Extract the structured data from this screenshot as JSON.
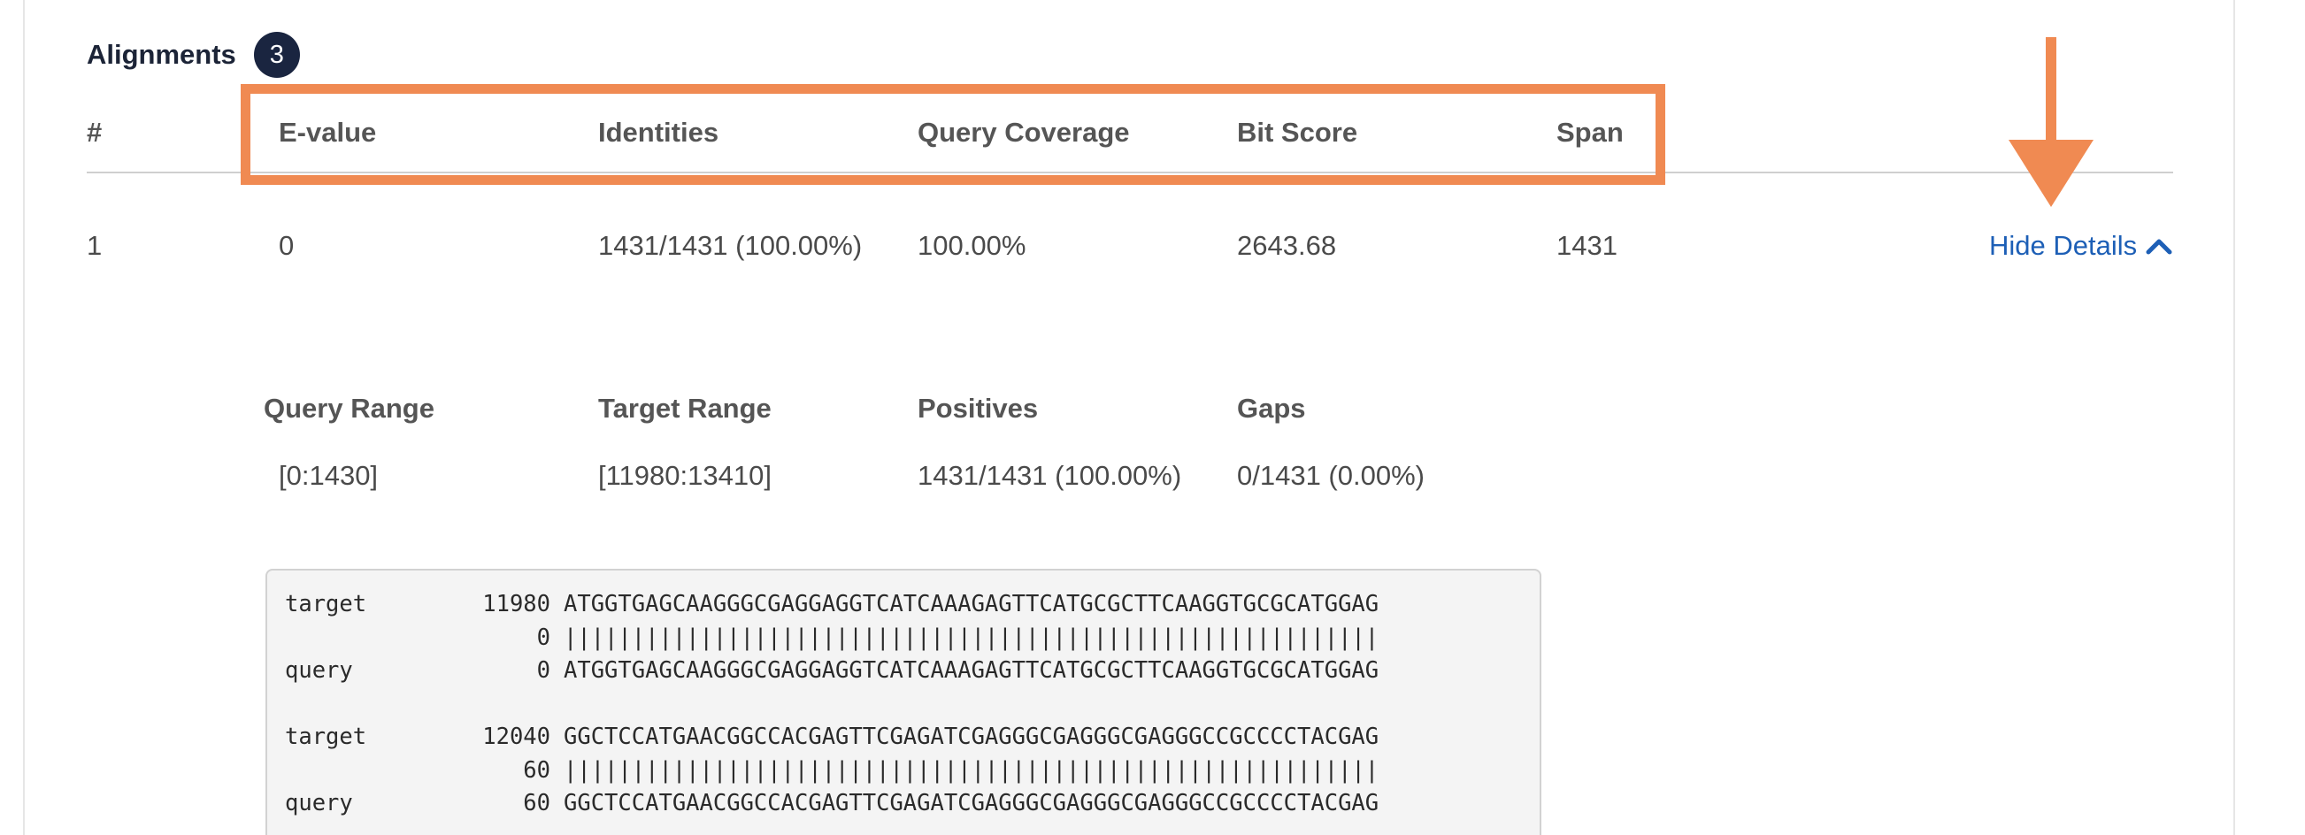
{
  "heading": {
    "title": "Alignments",
    "count": "3"
  },
  "table": {
    "columns": [
      "#",
      "E-value",
      "Identities",
      "Query Coverage",
      "Bit Score",
      "Span"
    ],
    "rows": [
      {
        "index": "1",
        "evalue": "0",
        "identities": "1431/1431 (100.00%)",
        "query_coverage": "100.00%",
        "bit_score": "2643.68",
        "span": "1431",
        "toggle_label": "Hide Details"
      }
    ]
  },
  "details": {
    "headers": [
      "Query Range",
      "Target Range",
      "Positives",
      "Gaps"
    ],
    "values": [
      "[0:1430]",
      "[11980:13410]",
      "1431/1431 (100.00%)",
      "0/1431 (0.00%)"
    ]
  },
  "alignment": {
    "blocks": [
      {
        "target_label": "target",
        "target_pos": "11980",
        "target_seq": "ATGGTGAGCAAGGGCGAGGAGGTCATCAAAGAGTTCATGCGCTTCAAGGTGCGCATGGAG",
        "match_pos": "0",
        "match_line": "||||||||||||||||||||||||||||||||||||||||||||||||||||||||||||",
        "query_label": "query",
        "query_pos": "0",
        "query_seq": "ATGGTGAGCAAGGGCGAGGAGGTCATCAAAGAGTTCATGCGCTTCAAGGTGCGCATGGAG"
      },
      {
        "target_label": "target",
        "target_pos": "12040",
        "target_seq": "GGCTCCATGAACGGCCACGAGTTCGAGATCGAGGGCGAGGGCGAGGGCCGCCCCTACGAG",
        "match_pos": "60",
        "match_line": "||||||||||||||||||||||||||||||||||||||||||||||||||||||||||||",
        "query_label": "query",
        "query_pos": "60",
        "query_seq": "GGCTCCATGAACGGCCACGAGTTCGAGATCGAGGGCGAGGGCGAGGGCCGCCCCTACGAG"
      }
    ]
  },
  "colors": {
    "highlight": "#f08a52",
    "link": "#1d5fb6",
    "badge": "#1a2540"
  },
  "icons": {
    "toggle": "chevron-up-icon",
    "annotation": "down-arrow-icon"
  }
}
